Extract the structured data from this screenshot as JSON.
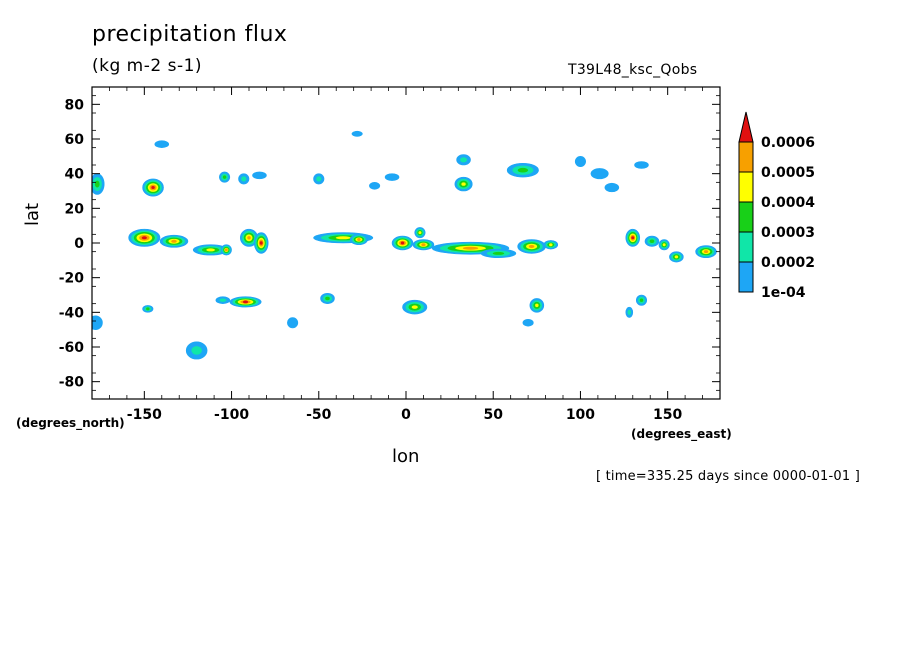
{
  "chart_data": {
    "type": "heatmap",
    "title": "precipitation flux",
    "subtitle": "(kg m-2 s-1)",
    "experiment": "T39L48_ksc_Qobs",
    "xlabel": "lon",
    "ylabel": "lat",
    "x_units": "(degrees_east)",
    "y_units": "(degrees_north)",
    "time_label": "[ time=335.25 days since 0000-01-01 ]",
    "xlim": [
      -180,
      180
    ],
    "ylim": [
      -90,
      90
    ],
    "x_ticks": [
      -150,
      -100,
      -50,
      0,
      50,
      100,
      150
    ],
    "x_tick_labels": [
      "-150",
      "-100",
      "-50",
      "0",
      "50",
      "100",
      "150"
    ],
    "y_ticks": [
      80,
      60,
      40,
      20,
      0,
      -20,
      -40,
      -60,
      -80
    ],
    "y_tick_labels": [
      "80",
      "60",
      "40",
      "20",
      "0",
      "-20",
      "-40",
      "-60",
      "-80"
    ],
    "colorbar": {
      "levels": [
        0.0001,
        0.0002,
        0.0003,
        0.0004,
        0.0005,
        0.0006
      ],
      "labels": [
        "1e-04",
        "0.0002",
        "0.0003",
        "0.0004",
        "0.0005",
        "0.0006"
      ],
      "colors": [
        "#1ea6f5",
        "#10e6a8",
        "#18d018",
        "#ffff00",
        "#f7a000",
        "#e01010"
      ]
    },
    "blobs": [
      {
        "lon": -150,
        "lat": 3,
        "rx": 9,
        "ry": 5,
        "peak": 6
      },
      {
        "lon": -133,
        "lat": 1,
        "rx": 8,
        "ry": 3.5,
        "peak": 5
      },
      {
        "lon": -112,
        "lat": -4,
        "rx": 10,
        "ry": 3,
        "peak": 4
      },
      {
        "lon": -103,
        "lat": -4,
        "rx": 3,
        "ry": 3,
        "peak": 5
      },
      {
        "lon": -90,
        "lat": 3,
        "rx": 5,
        "ry": 5,
        "peak": 5
      },
      {
        "lon": -83,
        "lat": 0,
        "rx": 4,
        "ry": 6,
        "peak": 6
      },
      {
        "lon": -36,
        "lat": 3,
        "rx": 17,
        "ry": 3,
        "peak": 4
      },
      {
        "lon": -27,
        "lat": 2,
        "rx": 5,
        "ry": 3,
        "peak": 5
      },
      {
        "lon": -2,
        "lat": 0,
        "rx": 6,
        "ry": 4,
        "peak": 6
      },
      {
        "lon": 10,
        "lat": -1,
        "rx": 6,
        "ry": 3,
        "peak": 5
      },
      {
        "lon": 8,
        "lat": 6,
        "rx": 3,
        "ry": 3,
        "peak": 4
      },
      {
        "lon": 37,
        "lat": -3,
        "rx": 22,
        "ry": 3.5,
        "peak": 5
      },
      {
        "lon": 53,
        "lat": -6,
        "rx": 10,
        "ry": 2.5,
        "peak": 3
      },
      {
        "lon": 72,
        "lat": -2,
        "rx": 8,
        "ry": 4,
        "peak": 5
      },
      {
        "lon": 83,
        "lat": -1,
        "rx": 4,
        "ry": 2.5,
        "peak": 4
      },
      {
        "lon": 130,
        "lat": 3,
        "rx": 4,
        "ry": 5,
        "peak": 6
      },
      {
        "lon": 141,
        "lat": 1,
        "rx": 4,
        "ry": 3,
        "peak": 3
      },
      {
        "lon": 148,
        "lat": -1,
        "rx": 3,
        "ry": 3,
        "peak": 4
      },
      {
        "lon": 155,
        "lat": -8,
        "rx": 4,
        "ry": 3,
        "peak": 4
      },
      {
        "lon": 172,
        "lat": -5,
        "rx": 6,
        "ry": 3.5,
        "peak": 5
      },
      {
        "lon": -177,
        "lat": 34,
        "rx": 4,
        "ry": 6,
        "peak": 3
      },
      {
        "lon": -145,
        "lat": 32,
        "rx": 6,
        "ry": 5,
        "peak": 6
      },
      {
        "lon": -104,
        "lat": 38,
        "rx": 3,
        "ry": 3,
        "peak": 3
      },
      {
        "lon": -93,
        "lat": 37,
        "rx": 3,
        "ry": 3,
        "peak": 2
      },
      {
        "lon": -84,
        "lat": 39,
        "rx": 4,
        "ry": 2,
        "peak": 1
      },
      {
        "lon": -50,
        "lat": 37,
        "rx": 3,
        "ry": 3,
        "peak": 2
      },
      {
        "lon": 33,
        "lat": 34,
        "rx": 5,
        "ry": 4,
        "peak": 4
      },
      {
        "lon": 67,
        "lat": 42,
        "rx": 9,
        "ry": 4,
        "peak": 3
      },
      {
        "lon": 100,
        "lat": 47,
        "rx": 3,
        "ry": 3,
        "peak": 1
      },
      {
        "lon": 111,
        "lat": 40,
        "rx": 5,
        "ry": 3,
        "peak": 1
      },
      {
        "lon": 118,
        "lat": 32,
        "rx": 4,
        "ry": 2.5,
        "peak": 1
      },
      {
        "lon": 33,
        "lat": 48,
        "rx": 4,
        "ry": 3,
        "peak": 2
      },
      {
        "lon": -140,
        "lat": 57,
        "rx": 4,
        "ry": 2,
        "peak": 1
      },
      {
        "lon": -28,
        "lat": 63,
        "rx": 3,
        "ry": 1.5,
        "peak": 1
      },
      {
        "lon": -18,
        "lat": 33,
        "rx": 3,
        "ry": 2,
        "peak": 1
      },
      {
        "lon": -8,
        "lat": 38,
        "rx": 4,
        "ry": 2,
        "peak": 1
      },
      {
        "lon": 135,
        "lat": 45,
        "rx": 4,
        "ry": 2,
        "peak": 1
      },
      {
        "lon": -92,
        "lat": -34,
        "rx": 9,
        "ry": 3,
        "peak": 6
      },
      {
        "lon": -105,
        "lat": -33,
        "rx": 4,
        "ry": 2,
        "peak": 2
      },
      {
        "lon": -120,
        "lat": -62,
        "rx": 6,
        "ry": 5,
        "peak": 2
      },
      {
        "lon": 5,
        "lat": -37,
        "rx": 7,
        "ry": 4,
        "peak": 4
      },
      {
        "lon": -45,
        "lat": -32,
        "rx": 4,
        "ry": 3,
        "peak": 3
      },
      {
        "lon": 135,
        "lat": -33,
        "rx": 3,
        "ry": 3,
        "peak": 3
      },
      {
        "lon": 128,
        "lat": -40,
        "rx": 2,
        "ry": 3,
        "peak": 2
      },
      {
        "lon": 75,
        "lat": -36,
        "rx": 4,
        "ry": 4,
        "peak": 4
      },
      {
        "lon": -178,
        "lat": -46,
        "rx": 4,
        "ry": 4,
        "peak": 1
      },
      {
        "lon": -148,
        "lat": -38,
        "rx": 3,
        "ry": 2,
        "peak": 3
      },
      {
        "lon": 70,
        "lat": -46,
        "rx": 3,
        "ry": 2,
        "peak": 1
      },
      {
        "lon": -65,
        "lat": -46,
        "rx": 3,
        "ry": 3,
        "peak": 1
      }
    ]
  }
}
